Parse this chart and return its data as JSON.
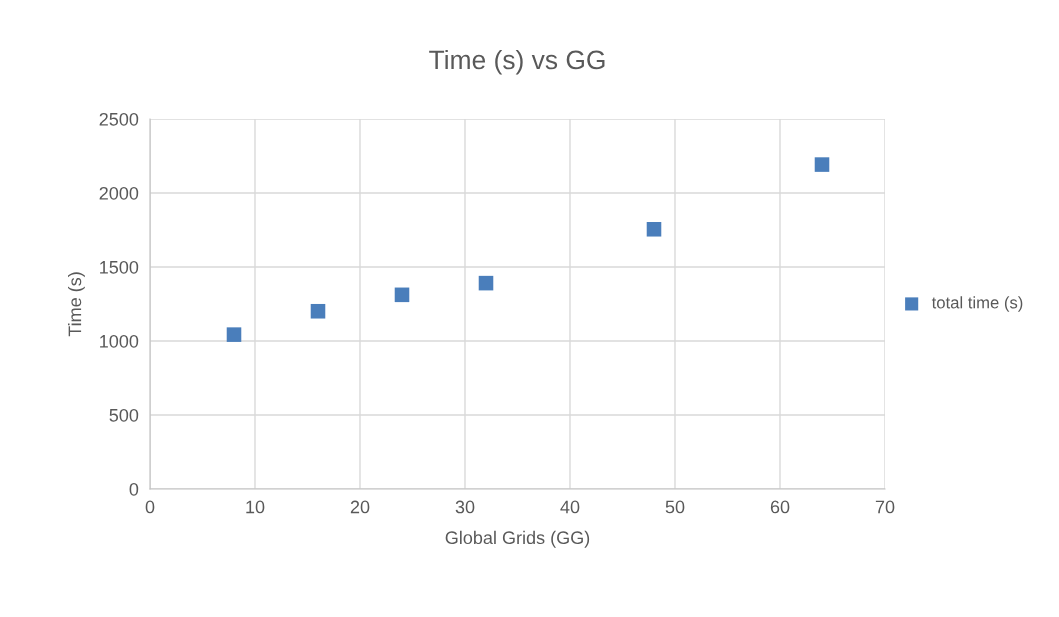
{
  "chart_data": {
    "type": "scatter",
    "title": "Time (s) vs GG",
    "xlabel": "Global Grids (GG)",
    "ylabel": "Time (s)",
    "x": [
      8,
      16,
      24,
      32,
      48,
      64
    ],
    "series": [
      {
        "name": "total time (s)",
        "color": "#4a7ebb",
        "values": [
          1043,
          1201,
          1312,
          1391,
          1755,
          2192
        ]
      }
    ],
    "xlim": [
      0,
      70
    ],
    "xticks": [
      0,
      10,
      20,
      30,
      40,
      50,
      60,
      70
    ],
    "ylim": [
      0,
      2500
    ],
    "yticks": [
      0,
      500,
      1000,
      1500,
      2000,
      2500
    ],
    "grid": true,
    "legend": "right",
    "marker": "square"
  }
}
